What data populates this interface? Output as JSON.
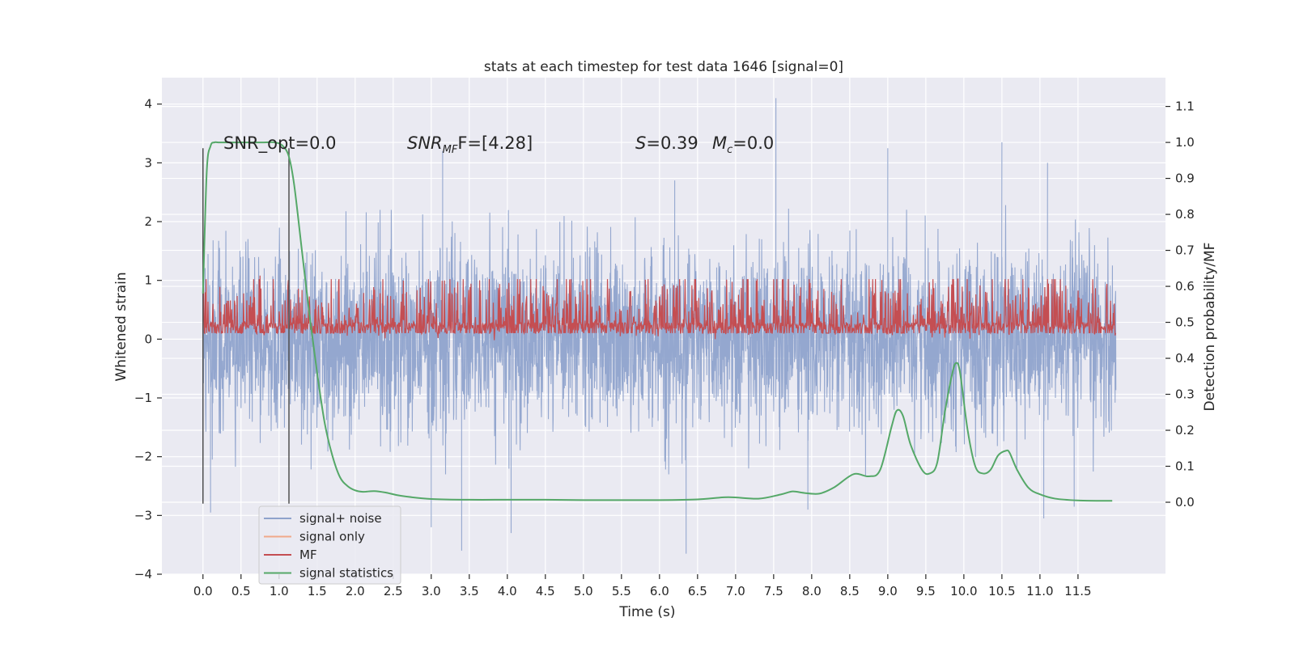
{
  "chart_data": {
    "type": "line",
    "title": "stats at each timestep for test data 1646 [signal=0]",
    "xlabel": "Time (s)",
    "ylabel_left": "Whitened strain",
    "ylabel_right": "Detection probability/MF",
    "xlim": [
      -0.54,
      12.65
    ],
    "ylim_left": [
      -4,
      4.45
    ],
    "ylim_right": [
      -0.2,
      1.18
    ],
    "xticks": [
      0.0,
      0.5,
      1.0,
      1.5,
      2.0,
      2.5,
      3.0,
      3.5,
      4.0,
      4.5,
      5.0,
      5.5,
      6.0,
      6.5,
      7.0,
      7.5,
      8.0,
      8.5,
      9.0,
      9.5,
      10.0,
      10.5,
      11.0,
      11.5
    ],
    "xtick_labels": [
      "0.0",
      "0.5",
      "1.0",
      "1.5",
      "2.0",
      "2.5",
      "3.0",
      "3.5",
      "4.0",
      "4.5",
      "5.0",
      "5.5",
      "6.0",
      "6.5",
      "7.0",
      "7.5",
      "8.0",
      "8.5",
      "9.0",
      "9.5",
      "10.0",
      "10.5",
      "11.0",
      "11.5"
    ],
    "yticks_left": [
      -4,
      -3,
      -2,
      -1,
      0,
      1,
      2,
      3,
      4
    ],
    "ytick_labels_left": [
      "−4",
      "−3",
      "−2",
      "−1",
      "0",
      "1",
      "2",
      "3",
      "4"
    ],
    "yticks_right": [
      0.0,
      0.1,
      0.2,
      0.3,
      0.4,
      0.5,
      0.6,
      0.7,
      0.8,
      0.9,
      1.0,
      1.1
    ],
    "ytick_labels_right": [
      "0.0",
      "0.1",
      "0.2",
      "0.3",
      "0.4",
      "0.5",
      "0.6",
      "0.7",
      "0.8",
      "0.9",
      "1.0",
      "1.1"
    ],
    "grid": true,
    "legend_position": "lower-left",
    "legend": [
      {
        "label": "signal+ noise",
        "color": "#8fa3cc"
      },
      {
        "label": "signal only",
        "color": "#f0a98a"
      },
      {
        "label": "MF",
        "color": "#c44e52"
      },
      {
        "label": "signal statistics",
        "color": "#55a868"
      }
    ],
    "annotations": {
      "snr_opt": "SNR_opt=0.0",
      "snr_mf_main": "SNR",
      "snr_mf_sub": "MF",
      "snr_mf_rest": "F=[4.28]",
      "s_main": "S",
      "s_rest": "=0.39",
      "mc_main": "M",
      "mc_sub": "c",
      "mc_rest": "=0.0"
    },
    "vertical_markers": [
      0.0,
      1.13
    ],
    "vertical_marker_range_left": [
      -2.8,
      3.25
    ],
    "series": [
      {
        "name": "signal+ noise",
        "color": "#8fa3cc",
        "t_range": [
          0.0,
          12.0
        ],
        "envelope_x": [
          0.0,
          0.5,
          1.0,
          1.5,
          2.0,
          2.5,
          3.0,
          3.5,
          4.0,
          4.5,
          5.0,
          5.5,
          6.0,
          6.5,
          7.0,
          7.5,
          8.0,
          8.5,
          9.0,
          9.5,
          10.0,
          10.5,
          11.0,
          11.5,
          12.0
        ],
        "envelope_upper": [
          2.0,
          2.1,
          2.2,
          2.1,
          2.2,
          2.2,
          2.1,
          2.1,
          2.2,
          2.1,
          2.1,
          2.1,
          2.2,
          2.1,
          2.2,
          2.3,
          2.1,
          2.3,
          2.3,
          2.1,
          2.2,
          2.3,
          2.1,
          2.1,
          1.8
        ],
        "envelope_lower": [
          -2.0,
          -2.2,
          -2.3,
          -2.2,
          -2.3,
          -2.2,
          -2.3,
          -2.3,
          -2.2,
          -2.3,
          -2.2,
          -2.2,
          -2.3,
          -2.3,
          -2.2,
          -2.2,
          -2.3,
          -2.3,
          -2.4,
          -2.3,
          -2.3,
          -2.2,
          -2.3,
          -2.3,
          -2.4
        ],
        "peaks": [
          {
            "t": 7.53,
            "v": 4.1
          },
          {
            "t": 9.0,
            "v": 3.25
          },
          {
            "t": 10.5,
            "v": 3.35
          },
          {
            "t": 3.15,
            "v": 3.2
          },
          {
            "t": 11.1,
            "v": 3.0
          },
          {
            "t": 6.2,
            "v": 2.7
          },
          {
            "t": 3.4,
            "v": -3.6
          },
          {
            "t": 6.35,
            "v": -3.65
          },
          {
            "t": 0.1,
            "v": -2.95
          },
          {
            "t": 4.05,
            "v": -3.3
          },
          {
            "t": 11.05,
            "v": -3.05
          },
          {
            "t": 3.0,
            "v": -3.2
          },
          {
            "t": 11.45,
            "v": -2.85
          },
          {
            "t": 7.95,
            "v": -2.9
          }
        ]
      },
      {
        "name": "MF",
        "color": "#c44e52",
        "t_range": [
          0.0,
          12.0
        ],
        "center": 0.5,
        "half_band": 0.07,
        "max_excursion": 0.62,
        "note_peak": {
          "t": 0.75,
          "v": 0.63
        }
      },
      {
        "name": "signal statistics",
        "color": "#55a868",
        "x": [
          0.0,
          0.05,
          0.1,
          0.15,
          0.2,
          0.3,
          0.5,
          0.8,
          0.95,
          1.05,
          1.13,
          1.2,
          1.3,
          1.4,
          1.5,
          1.6,
          1.7,
          1.8,
          1.9,
          2.0,
          2.1,
          2.25,
          2.4,
          2.6,
          3.0,
          3.5,
          4.0,
          4.5,
          5.0,
          5.5,
          6.0,
          6.5,
          6.9,
          7.3,
          7.6,
          7.75,
          7.9,
          8.1,
          8.3,
          8.55,
          8.75,
          8.9,
          9.05,
          9.12,
          9.2,
          9.3,
          9.45,
          9.55,
          9.65,
          9.75,
          9.85,
          9.9,
          9.95,
          10.05,
          10.15,
          10.25,
          10.35,
          10.45,
          10.55,
          10.6,
          10.7,
          10.85,
          11.0,
          11.2,
          11.5,
          11.8,
          11.95
        ],
        "y": [
          0.58,
          0.92,
          0.99,
          1.0,
          1.0,
          1.0,
          1.0,
          1.0,
          1.0,
          0.99,
          0.96,
          0.88,
          0.7,
          0.52,
          0.36,
          0.22,
          0.13,
          0.07,
          0.045,
          0.033,
          0.029,
          0.031,
          0.027,
          0.018,
          0.009,
          0.007,
          0.007,
          0.007,
          0.006,
          0.006,
          0.006,
          0.008,
          0.014,
          0.01,
          0.022,
          0.03,
          0.026,
          0.024,
          0.042,
          0.078,
          0.072,
          0.09,
          0.21,
          0.255,
          0.24,
          0.16,
          0.09,
          0.08,
          0.11,
          0.25,
          0.36,
          0.387,
          0.36,
          0.2,
          0.1,
          0.08,
          0.09,
          0.13,
          0.143,
          0.138,
          0.09,
          0.04,
          0.022,
          0.01,
          0.005,
          0.004,
          0.004
        ]
      }
    ]
  }
}
